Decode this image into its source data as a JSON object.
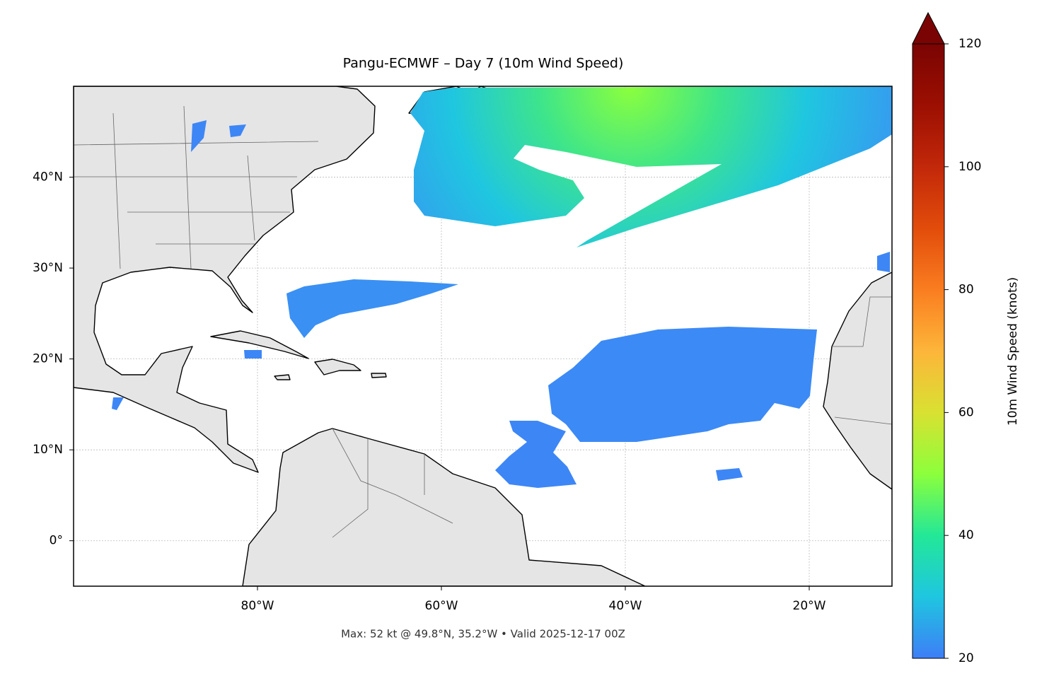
{
  "chart_data": {
    "type": "map",
    "title": "Pangu-ECMWF – Day 7 (10m Wind Speed)",
    "annotation": "Max: 52 kt @ 49.8°N, 35.2°W • Valid 2025-12-17 00Z",
    "xlim": [
      -100,
      -11
    ],
    "ylim": [
      -5,
      50
    ],
    "xticks": [
      {
        "value": -80,
        "label": "80°W"
      },
      {
        "value": -60,
        "label": "60°W"
      },
      {
        "value": -40,
        "label": "40°W"
      },
      {
        "value": -20,
        "label": "20°W"
      }
    ],
    "yticks": [
      {
        "value": 0,
        "label": "0°"
      },
      {
        "value": 10,
        "label": "10°N"
      },
      {
        "value": 20,
        "label": "20°N"
      },
      {
        "value": 30,
        "label": "30°N"
      },
      {
        "value": 40,
        "label": "40°N"
      }
    ],
    "grid": true,
    "colorbar": {
      "label": "10m Wind Speed (knots)",
      "lim": [
        20,
        120
      ],
      "ticks": [
        20,
        40,
        60,
        80,
        100,
        120
      ],
      "colors": [
        "#3d7ef7",
        "#1fc6e0",
        "#23e897",
        "#8cff3c",
        "#d9e132",
        "#fdb53a",
        "#fa7d20",
        "#e24c0b",
        "#c2280a",
        "#9c0f02",
        "#7a0403"
      ]
    }
  }
}
